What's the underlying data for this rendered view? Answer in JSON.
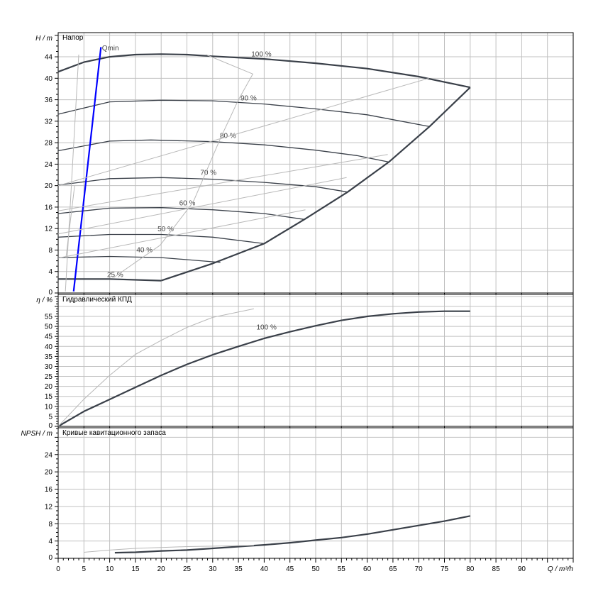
{
  "chart_data": [
    {
      "type": "line",
      "title": "Напор",
      "ylabel": "H / m",
      "xlabel": "Q / m³/h",
      "xlim": [
        0,
        100
      ],
      "ylim": [
        0,
        48.5
      ],
      "yticks": [
        0,
        4,
        8,
        12,
        16,
        20,
        24,
        28,
        32,
        36,
        40,
        44
      ],
      "grid": true,
      "series": [
        {
          "name": "100 %",
          "style": "dark-thick",
          "x": [
            0,
            5,
            10,
            15,
            20,
            25,
            30,
            40,
            50,
            60,
            70,
            80
          ],
          "y": [
            41.2,
            43,
            44,
            44.4,
            44.5,
            44.4,
            44.1,
            43.6,
            42.8,
            41.8,
            40.3,
            38.3
          ]
        },
        {
          "name": "90 %",
          "style": "dark",
          "x": [
            0,
            10,
            20,
            30,
            40,
            50,
            60,
            72.1
          ],
          "y": [
            33.3,
            35.6,
            35.9,
            35.8,
            35.2,
            34.3,
            33.2,
            31.0
          ]
        },
        {
          "name": "80 %",
          "style": "dark",
          "x": [
            0,
            10,
            18,
            30,
            40,
            50,
            58,
            64.2
          ],
          "y": [
            26.5,
            28.3,
            28.5,
            28.2,
            27.6,
            26.6,
            25.6,
            24.4
          ]
        },
        {
          "name": "70 %",
          "style": "dark",
          "x": [
            0,
            10,
            20,
            30,
            40,
            50,
            56.2
          ],
          "y": [
            20.1,
            21.3,
            21.5,
            21.2,
            20.6,
            19.8,
            18.8
          ]
        },
        {
          "name": "60 %",
          "style": "dark",
          "x": [
            0,
            10,
            20,
            30,
            40,
            47.8
          ],
          "y": [
            14.8,
            15.8,
            15.9,
            15.5,
            14.8,
            13.7
          ]
        },
        {
          "name": "50 %",
          "style": "dark",
          "x": [
            0,
            10,
            20,
            30,
            40
          ],
          "y": [
            10.4,
            10.9,
            10.9,
            10.4,
            9.2
          ]
        },
        {
          "name": "40 %",
          "style": "dark",
          "x": [
            0,
            10,
            20,
            31.5
          ],
          "y": [
            6.6,
            6.8,
            6.6,
            5.7
          ]
        },
        {
          "name": "25 %",
          "style": "dark-thick",
          "x": [
            0,
            10,
            20
          ],
          "y": [
            2.6,
            2.6,
            2.3
          ]
        },
        {
          "style": "dark-thick",
          "x": [
            20,
            30,
            40,
            47.8,
            56.2,
            64.2,
            72.1,
            80
          ],
          "y": [
            2.3,
            5.5,
            9.2,
            13.7,
            18.8,
            24.4,
            31.0,
            38.3
          ]
        },
        {
          "name": "Qmin",
          "style": "blue",
          "x": [
            3.0,
            8.3
          ],
          "y": [
            0.3,
            45.8
          ]
        },
        {
          "style": "gray",
          "x": [
            10.8,
            19.8,
            26.2,
            31.5,
            35,
            37.8,
            28.7
          ],
          "y": [
            2.9,
            8.9,
            16.9,
            28.8,
            36,
            40.8,
            44.4
          ]
        },
        {
          "style": "gray",
          "x": [
            0,
            72
          ],
          "y": [
            20,
            40
          ]
        },
        {
          "style": "gray",
          "x": [
            0,
            64
          ],
          "y": [
            15.3,
            25.8
          ]
        },
        {
          "style": "gray",
          "x": [
            0,
            56
          ],
          "y": [
            11,
            21.5
          ]
        },
        {
          "style": "gray",
          "x": [
            0,
            48
          ],
          "y": [
            6.5,
            15.5
          ]
        },
        {
          "style": "gray",
          "x": [
            4,
            1.4
          ],
          "y": [
            44.4,
            0.3
          ]
        },
        {
          "style": "gray",
          "x": [
            3.2,
            1.5
          ],
          "y": [
            20,
            6.5
          ]
        }
      ]
    },
    {
      "type": "line",
      "title": "Гидравлический КПД",
      "ylabel": "η / %",
      "xlim": [
        0,
        100
      ],
      "ylim": [
        0,
        66
      ],
      "yticks": [
        0,
        5,
        10,
        15,
        20,
        25,
        30,
        35,
        40,
        45,
        50,
        55
      ],
      "grid": true,
      "series": [
        {
          "name": "100 %",
          "style": "dark-thick",
          "x": [
            0,
            5,
            10,
            15,
            20,
            25,
            30,
            35,
            40,
            45,
            50,
            55,
            60,
            65,
            70,
            75,
            80
          ],
          "y": [
            0,
            7.5,
            13.5,
            19.5,
            25.5,
            31,
            35.8,
            40,
            44,
            47.3,
            50.3,
            53,
            55,
            56.3,
            57.2,
            57.6,
            57.6
          ]
        },
        {
          "style": "gray",
          "x": [
            0,
            5,
            10,
            15,
            20,
            25,
            30,
            38
          ],
          "y": [
            0,
            13.6,
            25.5,
            36,
            43,
            49.5,
            54.5,
            58.8
          ]
        }
      ]
    },
    {
      "type": "line",
      "title": "Кривые кавитационного запаса",
      "ylabel": "NPSH / m",
      "xlabel": "Q / m³/h",
      "xlim": [
        0,
        100
      ],
      "ylim": [
        0,
        30.2
      ],
      "yticks": [
        0,
        4,
        8,
        12,
        16,
        20,
        24
      ],
      "xticks": [
        0,
        5,
        10,
        15,
        20,
        25,
        30,
        35,
        40,
        45,
        50,
        55,
        60,
        65,
        70,
        75,
        80,
        85,
        90
      ],
      "grid": true,
      "series": [
        {
          "style": "dark-thick",
          "x": [
            11,
            15,
            20,
            25,
            30,
            35,
            40,
            45,
            50,
            55,
            60,
            65,
            70,
            75,
            80
          ],
          "y": [
            1.3,
            1.4,
            1.7,
            1.9,
            2.3,
            2.7,
            3.1,
            3.6,
            4.2,
            4.8,
            5.6,
            6.6,
            7.6,
            8.6,
            9.8
          ]
        },
        {
          "style": "gray",
          "x": [
            5,
            10,
            15,
            20,
            25,
            30,
            38
          ],
          "y": [
            1.4,
            1.9,
            2.3,
            2.5,
            2.7,
            2.8,
            3.0
          ]
        }
      ]
    }
  ],
  "colors": {
    "dark": "#3a4049",
    "gray": "#b8b8b8",
    "blue": "#0000ff",
    "grid": "#c0c0c0"
  }
}
